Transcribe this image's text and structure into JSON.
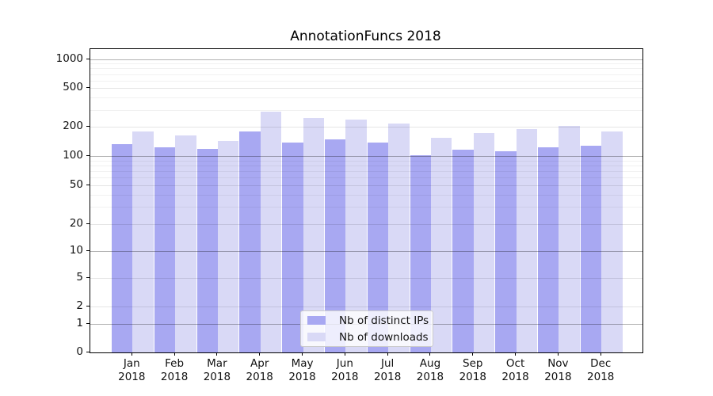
{
  "chart_data": {
    "type": "bar",
    "title": "AnnotationFuncs 2018",
    "categories": [
      "Jan 2018",
      "Feb 2018",
      "Mar 2018",
      "Apr 2018",
      "May 2018",
      "Jun 2018",
      "Jul 2018",
      "Aug 2018",
      "Sep 2018",
      "Oct 2018",
      "Nov 2018",
      "Dec 2018"
    ],
    "x_tick_months": [
      "Jan",
      "Feb",
      "Mar",
      "Apr",
      "May",
      "Jun",
      "Jul",
      "Aug",
      "Sep",
      "Oct",
      "Nov",
      "Dec"
    ],
    "x_tick_year": "2018",
    "series": [
      {
        "name": "Nb of distinct IPs",
        "color": "#a8a8f2",
        "values": [
          135,
          125,
          120,
          180,
          140,
          150,
          139,
          104,
          117,
          113,
          125,
          130
        ]
      },
      {
        "name": "Nb of downloads",
        "color": "#d9d9f6",
        "values": [
          180,
          165,
          145,
          290,
          248,
          242,
          219,
          155,
          173,
          192,
          208,
          182
        ]
      }
    ],
    "yscale": "symlog",
    "y_ticks": [
      1000,
      500,
      200,
      100,
      50,
      20,
      10,
      5,
      2,
      1,
      0
    ],
    "ylim": [
      0,
      1276
    ],
    "grid": true,
    "legend_position": "lower center",
    "colors": {
      "major_gridline": "rgba(0,0,0,0.30)",
      "labeled_minor_gridline": "rgba(0,0,0,0.10)",
      "minor_gridline": "rgba(0,0,0,0.055)"
    }
  }
}
